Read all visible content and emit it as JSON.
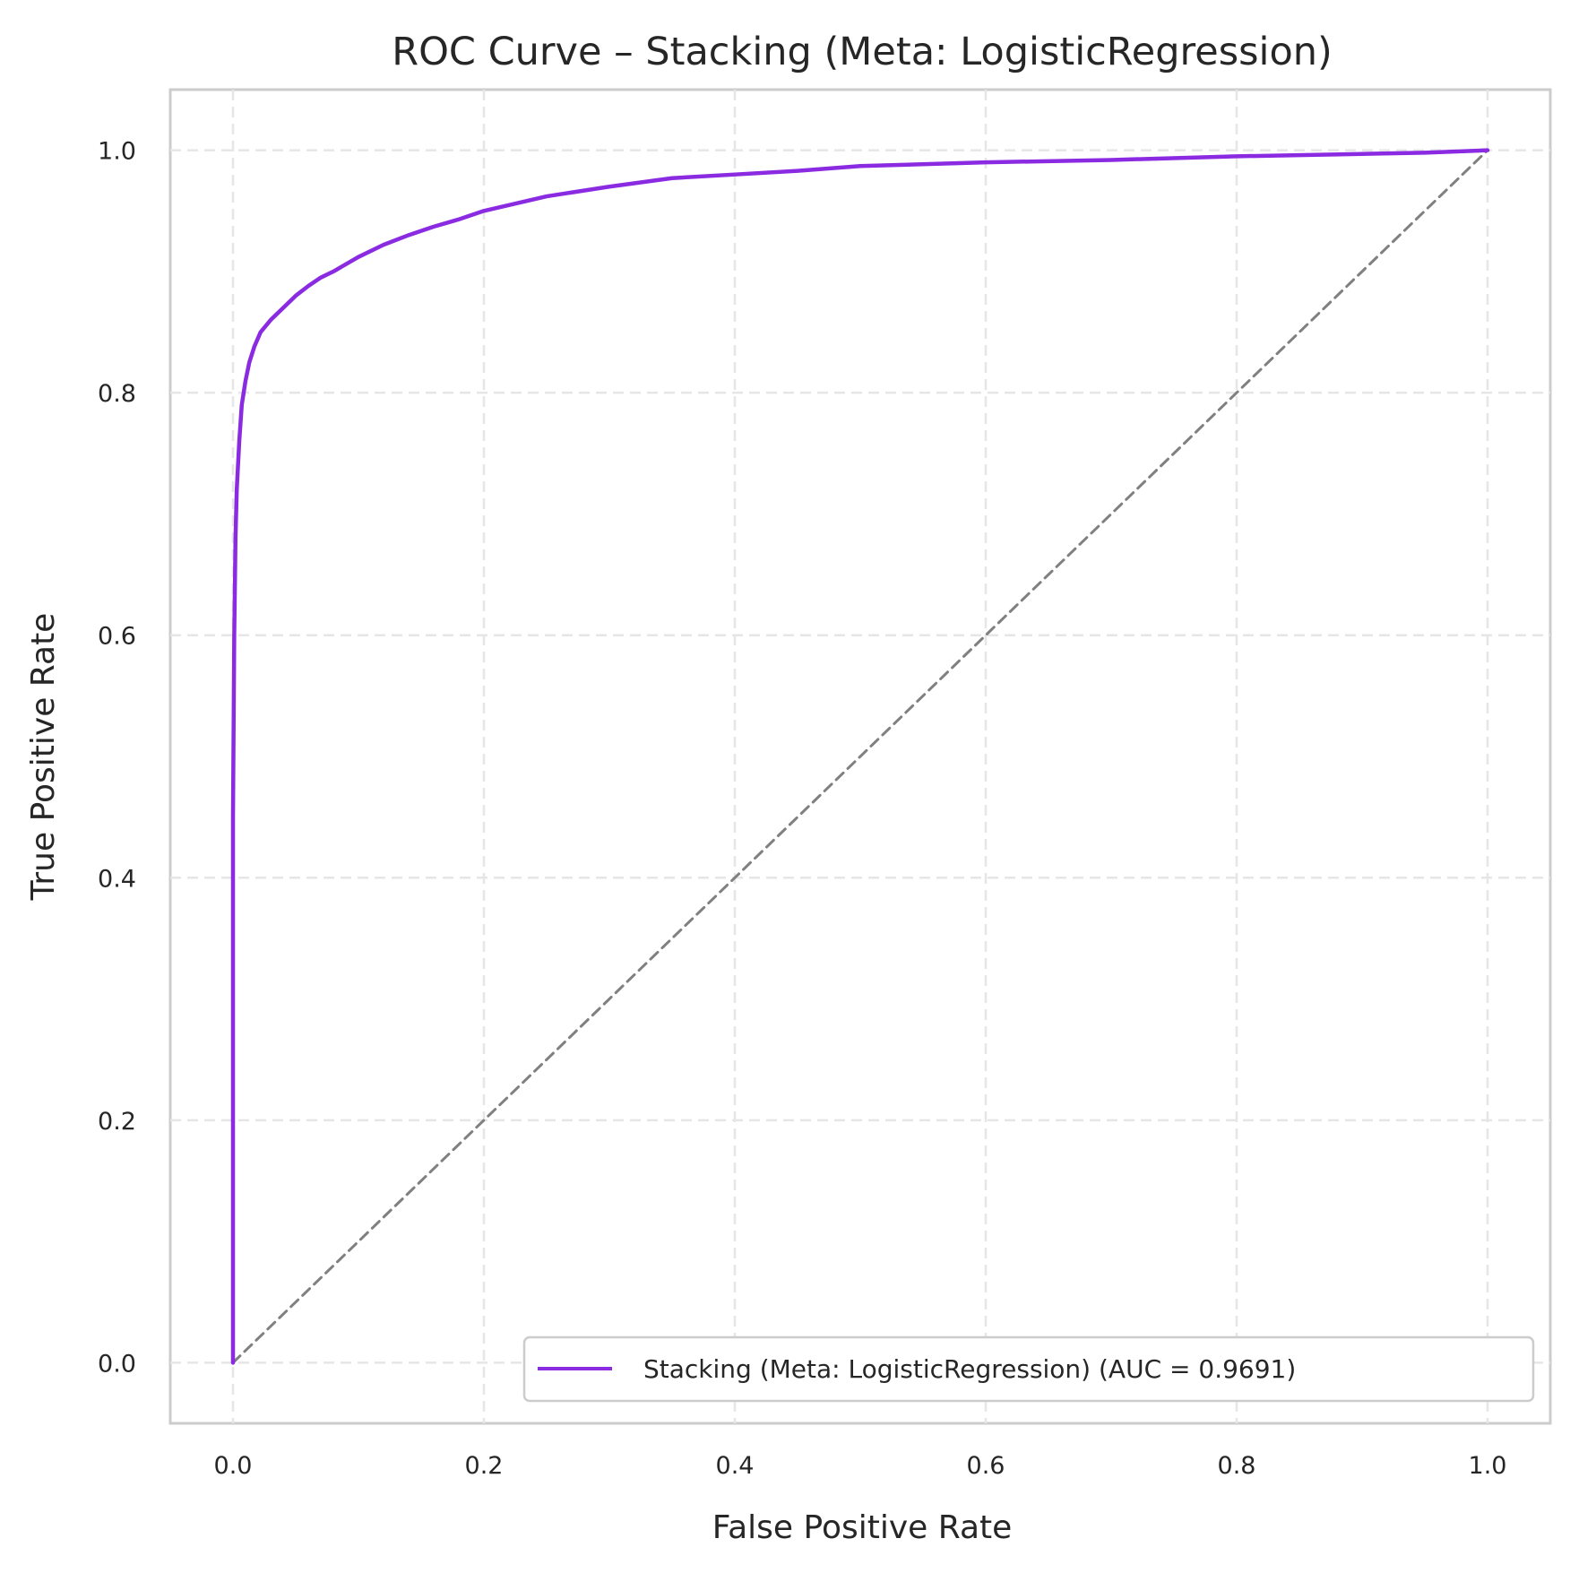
{
  "chart_data": {
    "type": "line",
    "title": "ROC Curve – Stacking (Meta: LogisticRegression)",
    "xlabel": "False Positive Rate",
    "ylabel": "True Positive Rate",
    "xlim": [
      -0.05,
      1.05
    ],
    "ylim": [
      -0.05,
      1.05
    ],
    "xticks": [
      0.0,
      0.2,
      0.4,
      0.6,
      0.8,
      1.0
    ],
    "yticks": [
      0.0,
      0.2,
      0.4,
      0.6,
      0.8,
      1.0
    ],
    "xtick_labels": [
      "0.0",
      "0.2",
      "0.4",
      "0.6",
      "0.8",
      "1.0"
    ],
    "ytick_labels": [
      "0.0",
      "0.2",
      "0.4",
      "0.6",
      "0.8",
      "1.0"
    ],
    "grid": true,
    "legend_position": "lower-right",
    "series": [
      {
        "name": "Stacking (Meta: LogisticRegression) (AUC = 0.9691)",
        "color": "#8a2be2",
        "style": "solid",
        "x": [
          0.0,
          0.0,
          0.001,
          0.002,
          0.003,
          0.005,
          0.007,
          0.01,
          0.013,
          0.017,
          0.022,
          0.03,
          0.04,
          0.05,
          0.06,
          0.07,
          0.08,
          0.1,
          0.12,
          0.14,
          0.16,
          0.18,
          0.2,
          0.25,
          0.3,
          0.35,
          0.4,
          0.45,
          0.5,
          0.6,
          0.7,
          0.8,
          0.9,
          0.95,
          1.0
        ],
        "y": [
          0.0,
          0.45,
          0.6,
          0.68,
          0.72,
          0.76,
          0.79,
          0.81,
          0.825,
          0.838,
          0.85,
          0.86,
          0.87,
          0.88,
          0.888,
          0.895,
          0.9,
          0.912,
          0.922,
          0.93,
          0.937,
          0.943,
          0.95,
          0.962,
          0.97,
          0.977,
          0.98,
          0.983,
          0.987,
          0.99,
          0.992,
          0.995,
          0.997,
          0.998,
          1.0
        ]
      },
      {
        "color": "#808080",
        "style": "dashed",
        "x": [
          0.0,
          1.0
        ],
        "y": [
          0.0,
          1.0
        ]
      }
    ]
  }
}
